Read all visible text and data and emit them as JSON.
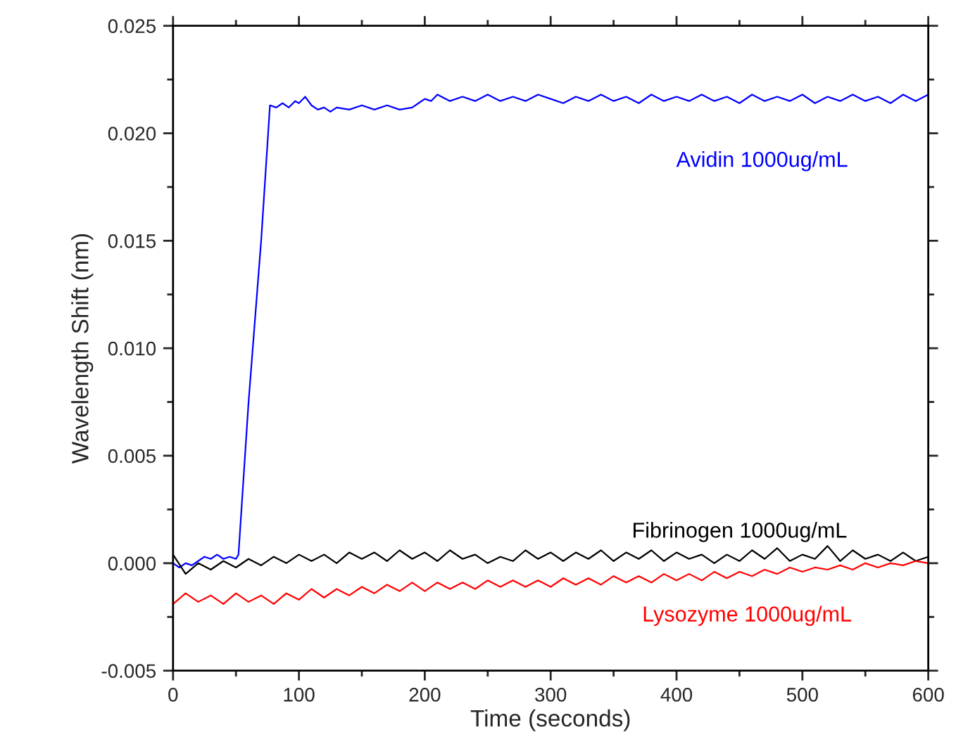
{
  "chart_data": {
    "type": "line",
    "xlabel": "Time (seconds)",
    "ylabel": "Wavelength Shift (nm)",
    "xlim": [
      0,
      600
    ],
    "ylim": [
      -0.005,
      0.025
    ],
    "xticks": [
      0,
      100,
      200,
      300,
      400,
      500,
      600
    ],
    "yticks": [
      {
        "value": -0.005,
        "label": "-0.005"
      },
      {
        "value": 0,
        "label": "0.000"
      },
      0.005,
      {
        "value": 0.01,
        "label": "0.010"
      },
      0.015,
      {
        "value": 0.02,
        "label": "0.020"
      },
      0.025
    ],
    "grid": false,
    "legend": false,
    "marker": "none",
    "line_style": "solid",
    "series": [
      {
        "name": "Avidin 1000ug/mL",
        "color": "#0000ff",
        "x": [
          0,
          5,
          10,
          15,
          20,
          25,
          30,
          35,
          40,
          45,
          50,
          52,
          60,
          70,
          77,
          82,
          87,
          92,
          97,
          100,
          105,
          110,
          115,
          120,
          125,
          130,
          140,
          150,
          160,
          170,
          180,
          190,
          195,
          200,
          205,
          210,
          220,
          230,
          240,
          250,
          260,
          270,
          280,
          290,
          300,
          310,
          320,
          330,
          340,
          350,
          360,
          370,
          380,
          390,
          400,
          410,
          420,
          430,
          440,
          450,
          460,
          470,
          480,
          490,
          500,
          510,
          520,
          530,
          540,
          550,
          560,
          570,
          580,
          590,
          600
        ],
        "values": [
          0.0,
          -0.0002,
          0.0,
          -0.0001,
          0.0001,
          0.0003,
          0.0002,
          0.0004,
          0.0002,
          0.0003,
          0.0002,
          0.0004,
          0.0075,
          0.015,
          0.0213,
          0.0212,
          0.0214,
          0.0212,
          0.0215,
          0.0214,
          0.0217,
          0.0213,
          0.0211,
          0.0212,
          0.021,
          0.0212,
          0.0211,
          0.0213,
          0.0211,
          0.0213,
          0.0211,
          0.0212,
          0.0214,
          0.0216,
          0.0215,
          0.0218,
          0.0215,
          0.0217,
          0.0215,
          0.0218,
          0.0215,
          0.0217,
          0.0215,
          0.0218,
          0.0216,
          0.0214,
          0.0217,
          0.0215,
          0.0218,
          0.0215,
          0.0217,
          0.0214,
          0.0218,
          0.0215,
          0.0217,
          0.0215,
          0.0218,
          0.0215,
          0.0217,
          0.0214,
          0.0218,
          0.0215,
          0.0217,
          0.0215,
          0.0218,
          0.0214,
          0.0217,
          0.0215,
          0.0218,
          0.0215,
          0.0217,
          0.0214,
          0.0218,
          0.0215,
          0.0218
        ]
      },
      {
        "name": "Fibrinogen 1000ug/mL",
        "color": "#000000",
        "x": [
          0,
          10,
          20,
          30,
          40,
          50,
          60,
          70,
          80,
          90,
          100,
          110,
          120,
          130,
          140,
          150,
          160,
          170,
          180,
          190,
          200,
          210,
          220,
          230,
          240,
          250,
          260,
          270,
          280,
          290,
          300,
          310,
          320,
          330,
          340,
          350,
          360,
          370,
          380,
          390,
          400,
          410,
          420,
          430,
          440,
          450,
          460,
          470,
          480,
          490,
          500,
          510,
          520,
          530,
          540,
          550,
          560,
          570,
          580,
          590,
          600
        ],
        "values": [
          0.0004,
          -0.0005,
          0.0,
          -0.0003,
          0.0001,
          -0.0002,
          0.0002,
          -0.0001,
          0.0003,
          0.0,
          0.0004,
          0.0001,
          0.0004,
          0.0,
          0.0005,
          0.0002,
          0.0005,
          0.0001,
          0.0006,
          0.0002,
          0.0005,
          0.0001,
          0.0006,
          0.0002,
          0.0004,
          0.0,
          0.0003,
          0.0001,
          0.0006,
          0.0002,
          0.0005,
          0.0001,
          0.0005,
          0.0002,
          0.0006,
          0.0001,
          0.0005,
          0.0002,
          0.0006,
          0.0001,
          0.0005,
          0.0002,
          0.0004,
          0.0,
          0.0004,
          0.0001,
          0.0006,
          0.0002,
          0.0007,
          0.0001,
          0.0004,
          0.0002,
          0.0008,
          0.0001,
          0.0006,
          0.0002,
          0.0004,
          0.0001,
          0.0005,
          0.0001,
          0.0003
        ]
      },
      {
        "name": "Lysozyme 1000ug/mL",
        "color": "#ff0000",
        "x": [
          0,
          10,
          20,
          30,
          40,
          50,
          60,
          70,
          80,
          90,
          100,
          110,
          120,
          130,
          140,
          150,
          160,
          170,
          180,
          190,
          200,
          210,
          220,
          230,
          240,
          250,
          260,
          270,
          280,
          290,
          300,
          310,
          320,
          330,
          340,
          350,
          360,
          370,
          380,
          390,
          400,
          410,
          420,
          430,
          440,
          450,
          460,
          470,
          480,
          490,
          500,
          510,
          520,
          530,
          540,
          550,
          560,
          570,
          580,
          590,
          600
        ],
        "values": [
          -0.0019,
          -0.0014,
          -0.0018,
          -0.0015,
          -0.0019,
          -0.0014,
          -0.0018,
          -0.0015,
          -0.0019,
          -0.0014,
          -0.0017,
          -0.0012,
          -0.0016,
          -0.0012,
          -0.0015,
          -0.0011,
          -0.0014,
          -0.001,
          -0.0013,
          -0.0009,
          -0.0013,
          -0.0009,
          -0.0012,
          -0.0009,
          -0.0012,
          -0.0008,
          -0.0011,
          -0.0008,
          -0.0011,
          -0.0008,
          -0.0011,
          -0.0007,
          -0.001,
          -0.0007,
          -0.001,
          -0.0006,
          -0.0009,
          -0.0006,
          -0.0009,
          -0.0005,
          -0.0008,
          -0.0005,
          -0.0008,
          -0.0004,
          -0.0007,
          -0.0004,
          -0.0006,
          -0.0003,
          -0.0005,
          -0.0002,
          -0.0004,
          -0.0002,
          -0.0003,
          -0.0001,
          -0.0003,
          0.0,
          -0.0002,
          0.0,
          -0.0001,
          0.0001,
          0.0
        ]
      }
    ]
  }
}
